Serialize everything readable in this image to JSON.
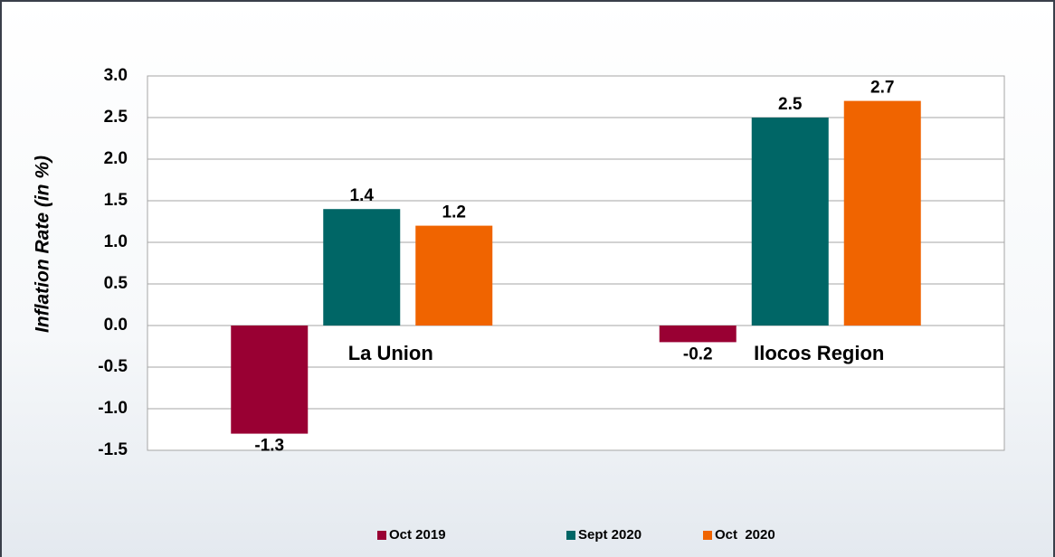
{
  "chart_data": {
    "type": "bar",
    "y_label": "Inflation Rate (in %)",
    "categories": [
      "La Union",
      "Ilocos Region"
    ],
    "series": [
      {
        "name": "Oct 2019",
        "color": "#990033",
        "values": [
          -1.3,
          -0.2
        ]
      },
      {
        "name": "Sept 2020",
        "color": "#006666",
        "values": [
          1.4,
          2.5
        ]
      },
      {
        "name": "Oct  2020",
        "color": "#f06400",
        "values": [
          1.2,
          2.7
        ]
      }
    ],
    "ylim": [
      -1.5,
      3.0
    ],
    "yticks": [
      {
        "value": -1.5,
        "label": "-1.5"
      },
      {
        "value": -1.0,
        "label": "-1.0"
      },
      {
        "value": -0.5,
        "label": "-0.5"
      },
      {
        "value": 0,
        "label": "0.0"
      },
      {
        "value": 0.5,
        "label": "0.5"
      },
      {
        "value": 1.0,
        "label": "1.0"
      },
      {
        "value": 1.5,
        "label": "1.5"
      },
      {
        "value": 2.0,
        "label": "2.0"
      },
      {
        "value": 2.5,
        "label": "2.5"
      },
      {
        "value": 3.0,
        "label": "3.0"
      }
    ],
    "grid": true,
    "legend": "bottom"
  }
}
